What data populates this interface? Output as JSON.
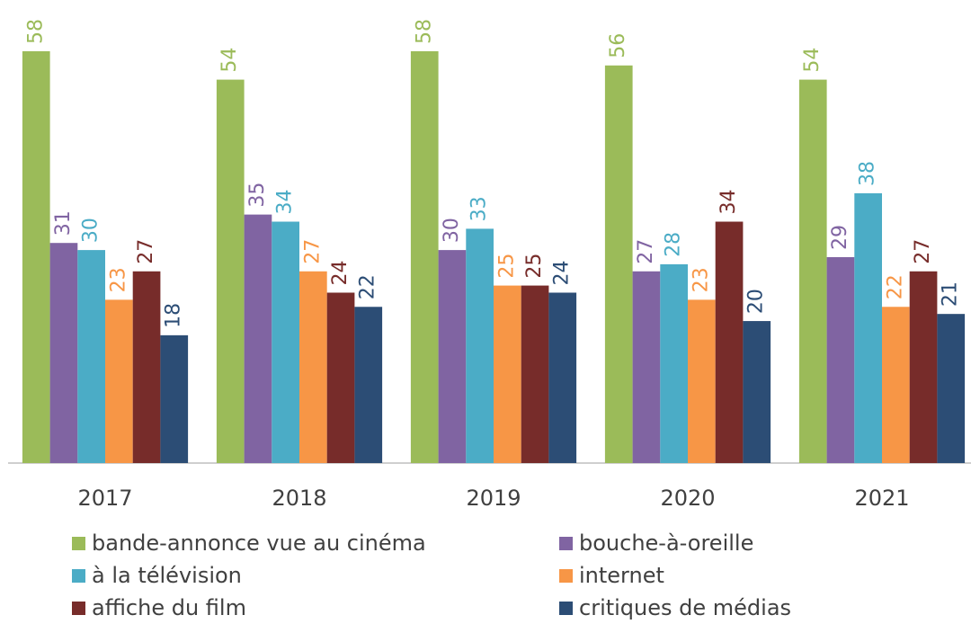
{
  "chart_data": {
    "type": "bar",
    "categories": [
      "2017",
      "2018",
      "2019",
      "2020",
      "2021"
    ],
    "series": [
      {
        "name": "bande-annonce vue au cinéma",
        "color": "#9bbb59",
        "values": [
          58,
          54,
          58,
          56,
          54
        ]
      },
      {
        "name": "bouche-à-oreille",
        "color": "#8064a2",
        "values": [
          31,
          35,
          30,
          27,
          29
        ]
      },
      {
        "name": "à la télévision",
        "color": "#4bacc6",
        "values": [
          30,
          34,
          33,
          28,
          38
        ]
      },
      {
        "name": "internet",
        "color": "#f79646",
        "values": [
          23,
          27,
          25,
          23,
          22
        ]
      },
      {
        "name": "affiche du film",
        "color": "#772c2a",
        "values": [
          27,
          24,
          25,
          34,
          27
        ]
      },
      {
        "name": "critiques de médias",
        "color": "#2c4d75",
        "values": [
          18,
          22,
          24,
          20,
          21
        ]
      }
    ],
    "ylim": [
      0,
      58
    ],
    "legend": "bottom"
  }
}
